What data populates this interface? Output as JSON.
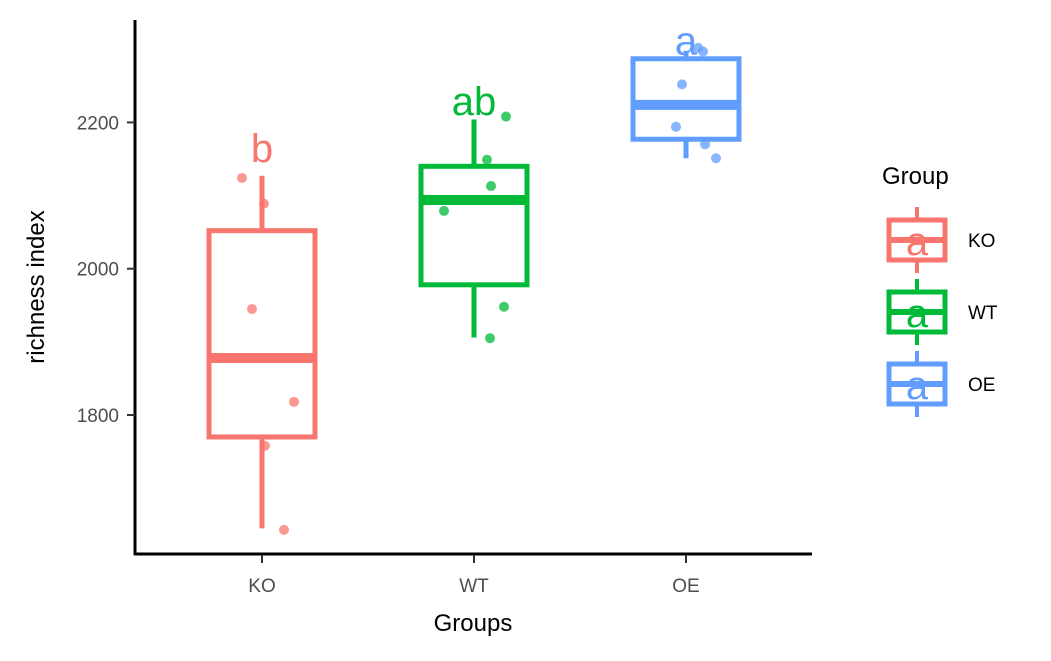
{
  "chart_data": {
    "type": "box",
    "xlabel": "Groups",
    "ylabel": "richness index",
    "categories": [
      "KO",
      "WT",
      "OE"
    ],
    "ylim": [
      1610,
      2340
    ],
    "yticks": [
      1800,
      2000,
      2200
    ],
    "grid": false,
    "legend": {
      "title": "Group",
      "position": "right",
      "glyph": "a"
    },
    "series": [
      {
        "name": "KO",
        "color": "#F8766D",
        "box": {
          "whisker_low": 1645,
          "q1": 1770,
          "median": 1878,
          "q3": 2052,
          "whisker_high": 2127
        },
        "points": [
          [
            -0.2,
            2124
          ],
          [
            0.02,
            2089
          ],
          [
            -0.1,
            1945
          ],
          [
            0.32,
            1818
          ],
          [
            0.03,
            1758
          ],
          [
            0.22,
            1643
          ]
        ],
        "label": "b",
        "label_y": 2165
      },
      {
        "name": "WT",
        "color": "#00BA38",
        "box": {
          "whisker_low": 1906,
          "q1": 1978,
          "median": 2094,
          "q3": 2140,
          "whisker_high": 2204
        },
        "points": [
          [
            0.32,
            2208
          ],
          [
            0.13,
            2149
          ],
          [
            0.17,
            2113
          ],
          [
            -0.3,
            2079
          ],
          [
            0.3,
            1948
          ],
          [
            0.16,
            1905
          ]
        ],
        "label": "ab",
        "label_y": 2229
      },
      {
        "name": "OE",
        "color": "#619CFF",
        "box": {
          "whisker_low": 2151,
          "q1": 2177,
          "median": 2224,
          "q3": 2287,
          "whisker_high": 2298
        },
        "points": [
          [
            0.12,
            2302
          ],
          [
            0.17,
            2297
          ],
          [
            -0.04,
            2252
          ],
          [
            -0.1,
            2194
          ],
          [
            0.19,
            2170
          ],
          [
            0.3,
            2151
          ]
        ],
        "label": "a",
        "label_y": 2312
      }
    ]
  }
}
